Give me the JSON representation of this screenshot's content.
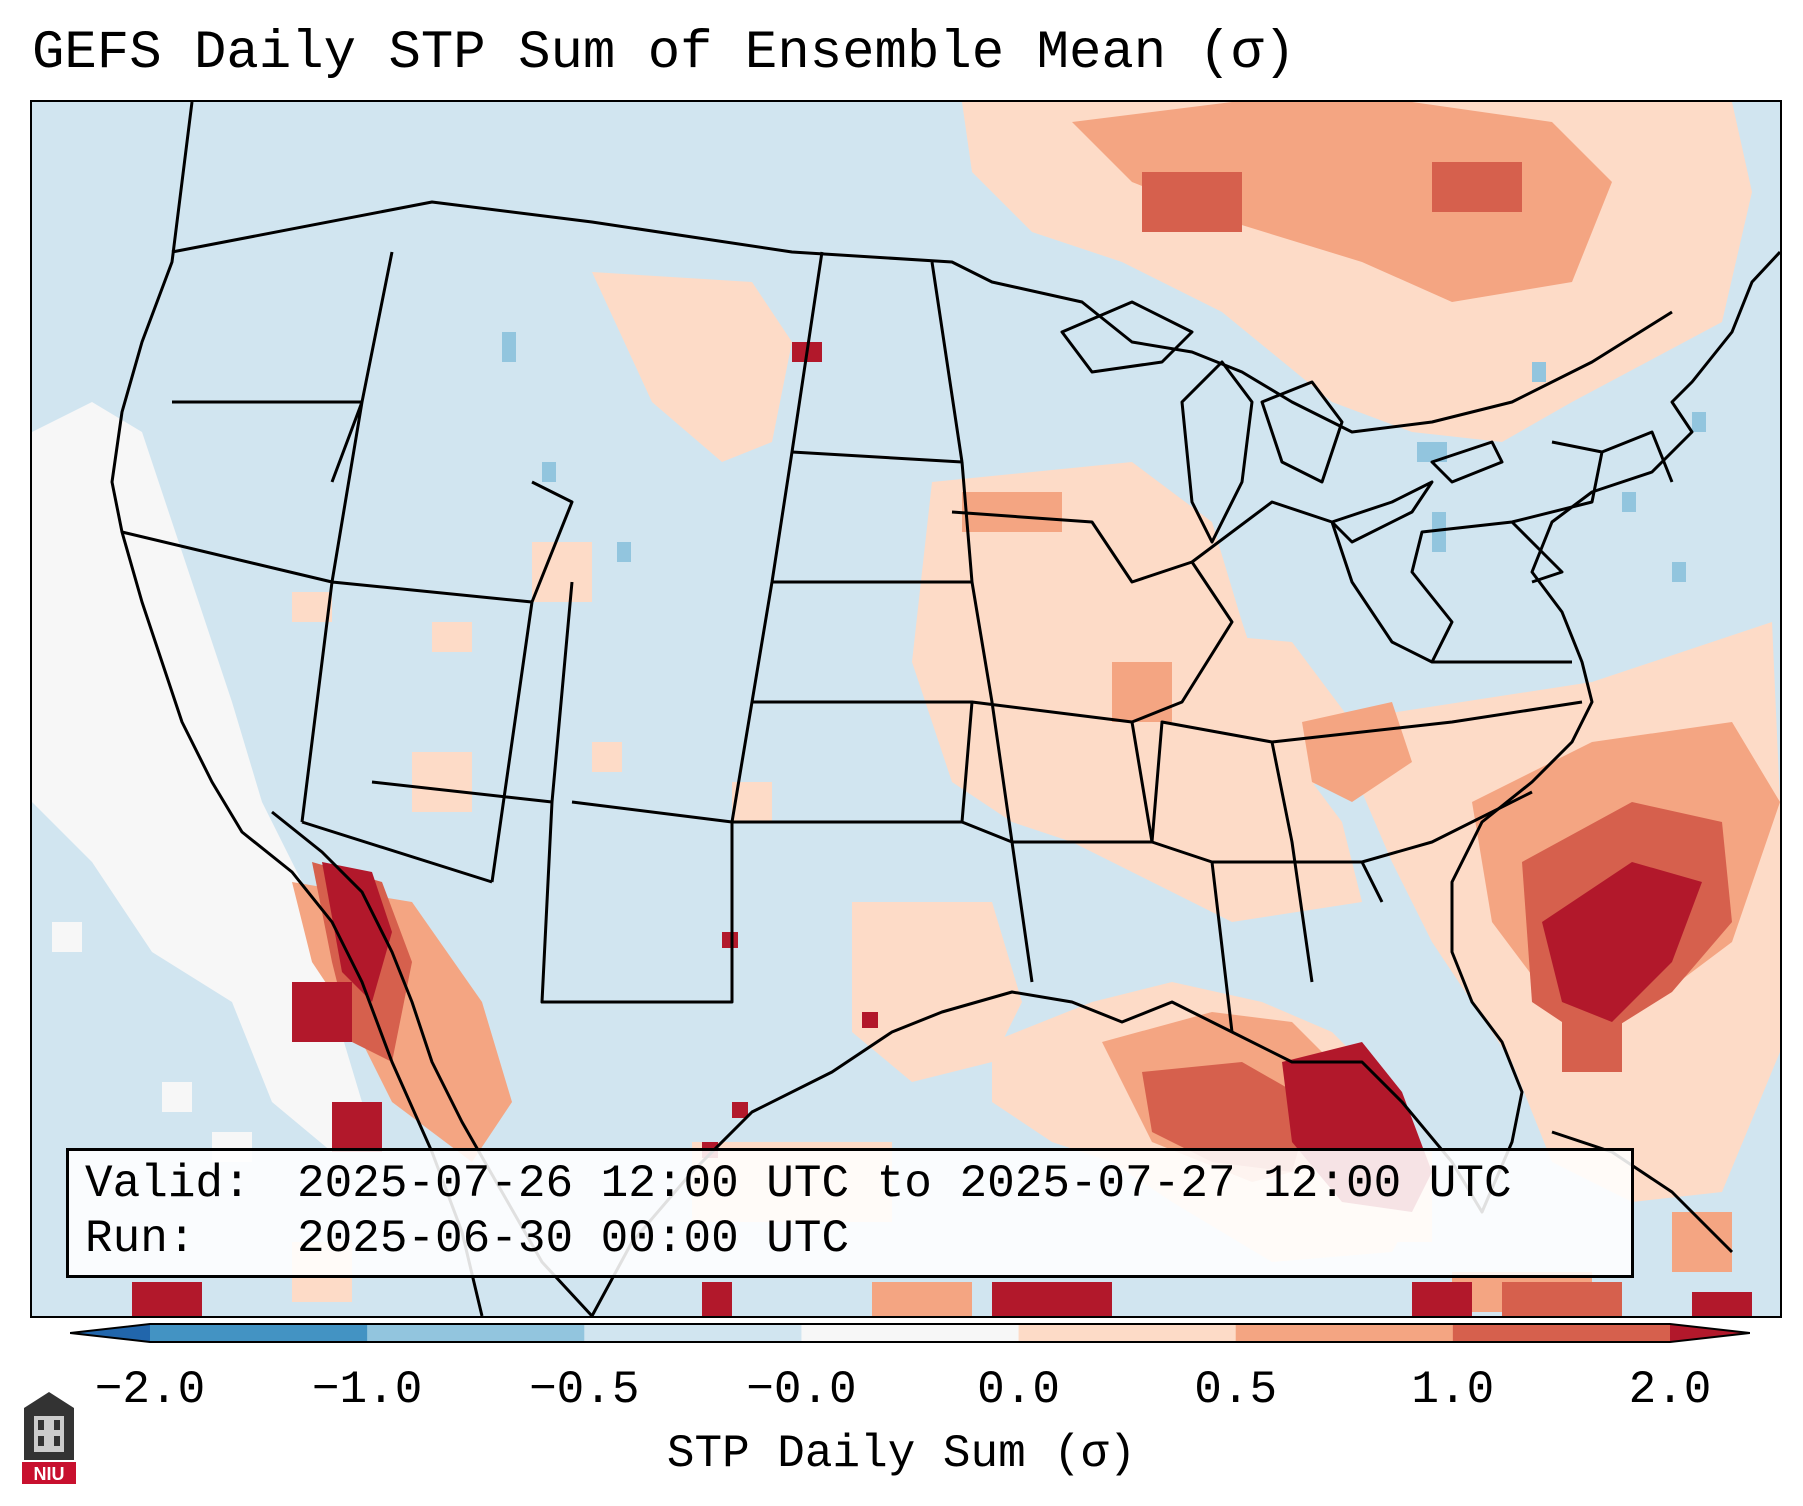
{
  "title": "GEFS Daily STP Sum of Ensemble Mean (σ)",
  "info": {
    "valid_label": "Valid:",
    "valid_value": "2025-07-26 12:00 UTC to 2025-07-27 12:00 UTC",
    "run_label": "Run:",
    "run_value": "2025-06-30 00:00 UTC"
  },
  "colorbar": {
    "label": "STP Daily Sum (σ)",
    "ticks": [
      "−2.0",
      "−1.0",
      "−0.5",
      "−0.0",
      "0.0",
      "0.5",
      "1.0",
      "2.0"
    ],
    "bins": [
      "#4393c3",
      "#92c5de",
      "#d1e5f0",
      "#f7f7f7",
      "#fddbc7",
      "#f4a582",
      "#d6604d"
    ],
    "under_color": "#2166ac",
    "over_color": "#b2182b"
  },
  "map": {
    "background_color": "#d1e5f0",
    "border_color": "#000000"
  },
  "logo": {
    "text": "NIU"
  }
}
